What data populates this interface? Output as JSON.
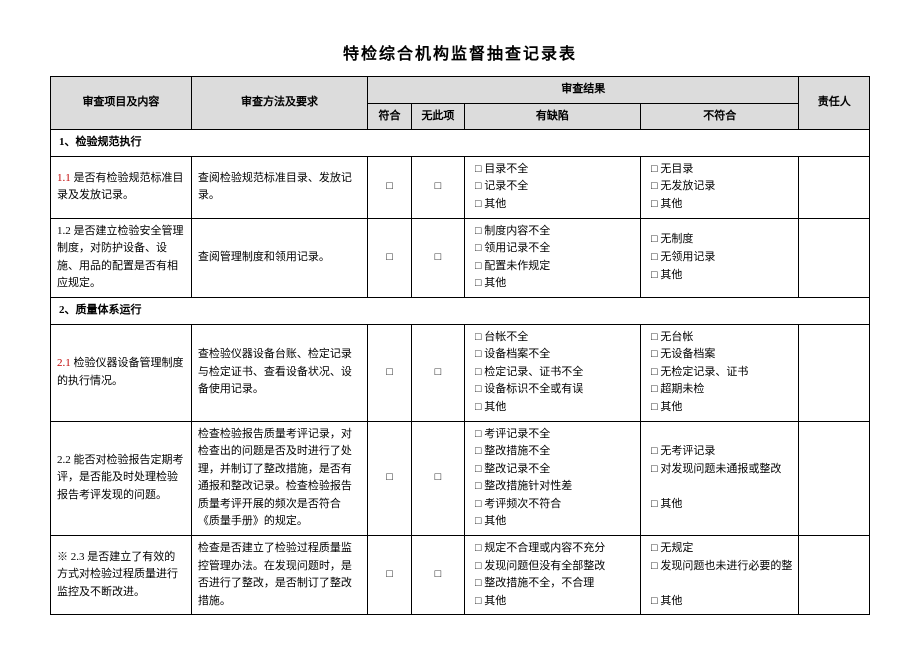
{
  "title": "特检综合机构监督抽查记录表",
  "headers": {
    "item": "审查项目及内容",
    "method": "审查方法及要求",
    "result": "审查结果",
    "fit": "符合",
    "none": "无此项",
    "defect": "有缺陷",
    "fail": "不符合",
    "resp": "责任人"
  },
  "checkbox": "□",
  "sections": [
    {
      "heading": "1、检验规范执行",
      "rows": [
        {
          "num": "1.1",
          "num_red": true,
          "item": " 是否有检验规范标准目录及发放记录。",
          "method": "查阅检验规范标准目录、发放记录。",
          "defect": [
            "目录不全",
            "记录不全",
            "其他"
          ],
          "fail": [
            "无目录",
            "无发放记录",
            "其他"
          ]
        },
        {
          "num": "1.2",
          "num_red": false,
          "item": " 是否建立检验安全管理制度，对防护设备、设施、用品的配置是否有相应规定。",
          "method": "查阅管理制度和领用记录。",
          "defect": [
            "制度内容不全",
            "领用记录不全",
            "配置未作规定",
            "其他"
          ],
          "fail": [
            "无制度",
            "无领用记录",
            "其他"
          ]
        }
      ]
    },
    {
      "heading": "2、质量体系运行",
      "rows": [
        {
          "num": "2.1",
          "num_red": true,
          "item": " 检验仪器设备管理制度的执行情况。",
          "method": "查检验仪器设备台账、检定记录与检定证书、查看设备状况、设备使用记录。",
          "defect": [
            "台帐不全",
            "设备档案不全",
            "检定记录、证书不全",
            "设备标识不全或有误",
            "其他"
          ],
          "fail": [
            "无台帐",
            "无设备档案",
            "无检定记录、证书",
            "超期未检",
            "其他"
          ]
        },
        {
          "num": "2.2",
          "num_red": false,
          "item": " 能否对检验报告定期考评，是否能及时处理检验报告考评发现的问题。",
          "method": "检查检验报告质量考评记录，对检查出的问题是否及时进行了处理，并制订了整改措施，是否有通报和整改记录。检查检验报告质量考评开展的频次是否符合《质量手册》的规定。",
          "defect": [
            "考评记录不全",
            "整改措施不全",
            "整改记录不全",
            " 整改措施针对性差",
            "考评频次不符合",
            "其他"
          ],
          "fail": [
            "无考评记录",
            "对发现问题未通报或整改",
            "",
            "其他"
          ]
        },
        {
          "num": "※ 2.3",
          "num_red": false,
          "item": " 是否建立了有效的方式对检验过程质量进行监控及不断改进。",
          "method": "检查是否建立了检验过程质量监控管理办法。在发现问题时，是否进行了整改，是否制订了整改措施。",
          "defect": [
            "规定不合理或内容不充分",
            "发现问题但没有全部整改",
            "整改措施不全，不合理",
            "其他"
          ],
          "fail": [
            "无规定",
            "发现问题也未进行必要的整改",
            "",
            "其他"
          ]
        }
      ]
    }
  ]
}
